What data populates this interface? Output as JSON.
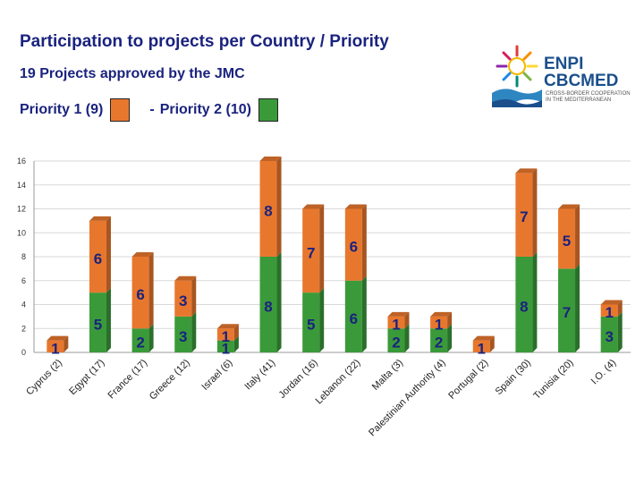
{
  "header": {
    "title": "Participation to projects per Country / Priority",
    "subtitle": "19 Projects approved by the JMC",
    "legend_p1": "Priority 1 (9)",
    "legend_sep": "-",
    "legend_p2": "Priority 2 (10)"
  },
  "logo": {
    "line1": "ENPI",
    "line2": "CBCMED",
    "tagline": "CROSS-BORDER COOPERATION IN THE MEDITERRANEAN"
  },
  "colors": {
    "priority1": "#3a9a3a",
    "priority2": "#e8772e",
    "label": "#1a237e"
  },
  "chart_data": {
    "type": "bar",
    "stacked": true,
    "categories": [
      "Cyprus (2)",
      "Egypt (17)",
      "France (17)",
      "Greece (12)",
      "Israel (6)",
      "Italy (41)",
      "Jordan (16)",
      "Lebanon (22)",
      "Malta (3)",
      "Palestinian Authority (4)",
      "Portugal (2)",
      "Spain (30)",
      "Tunisia (20)",
      "I.O. (4)"
    ],
    "series": [
      {
        "values": [
          0,
          5,
          2,
          3,
          1,
          8,
          5,
          6,
          2,
          2,
          0,
          8,
          7,
          3
        ],
        "color": "#3a9a3a"
      },
      {
        "values": [
          1,
          6,
          6,
          3,
          1,
          8,
          7,
          6,
          1,
          1,
          1,
          7,
          5,
          1
        ],
        "color": "#e8772e"
      }
    ],
    "data_labels": [
      {
        "bottom": "",
        "top": "1"
      },
      {
        "bottom": "5",
        "top": "6"
      },
      {
        "bottom": "2",
        "top": "6"
      },
      {
        "bottom": "3",
        "top": "3"
      },
      {
        "bottom": "1",
        "top": "1"
      },
      {
        "bottom": "8",
        "top": "8"
      },
      {
        "bottom": "5",
        "top": "7"
      },
      {
        "bottom": "6",
        "top": "6"
      },
      {
        "bottom": "2",
        "top": "1"
      },
      {
        "bottom": "2",
        "top": "1"
      },
      {
        "bottom": "",
        "top": "1"
      },
      {
        "bottom": "8",
        "top": "7"
      },
      {
        "bottom": "7",
        "top": "5"
      },
      {
        "bottom": "3",
        "top": "1"
      }
    ],
    "yticks": [
      "0",
      "2",
      "4",
      "6",
      "8",
      "10",
      "12",
      "14",
      "16"
    ],
    "ylim": [
      0,
      16
    ],
    "grid": true
  }
}
